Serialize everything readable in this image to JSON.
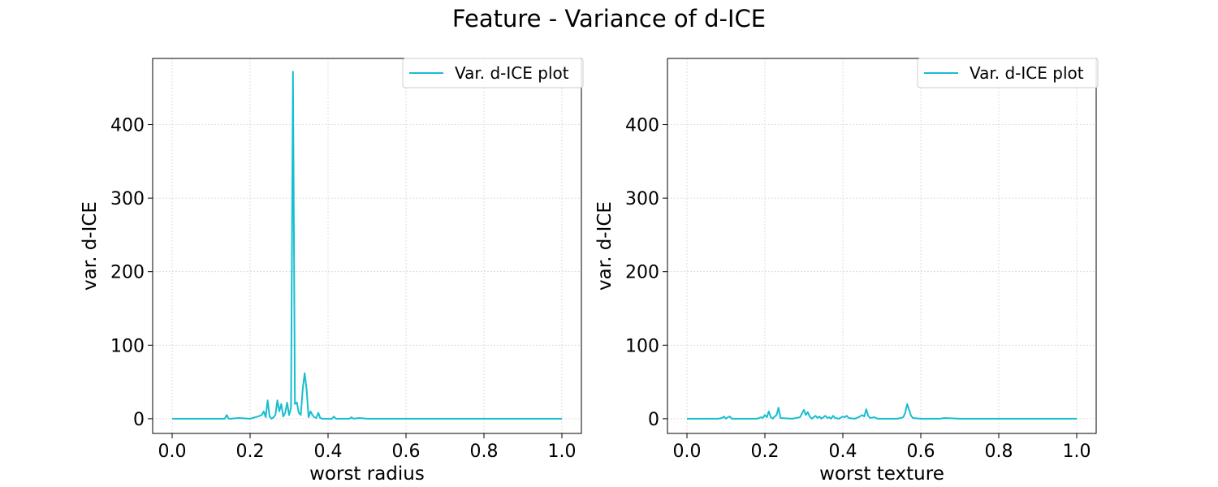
{
  "figure": {
    "title": "Feature - Variance of d-ICE"
  },
  "chart_data": [
    {
      "type": "line",
      "title": "",
      "xlabel": "worst radius",
      "ylabel": "var. d-ICE",
      "xlim": [
        -0.05,
        1.05
      ],
      "ylim": [
        -20,
        490
      ],
      "xticks": [
        "0.0",
        "0.2",
        "0.4",
        "0.6",
        "0.8",
        "1.0"
      ],
      "yticks": [
        "0",
        "100",
        "200",
        "300",
        "400"
      ],
      "grid": true,
      "legend_position": "top-right",
      "series": [
        {
          "name": "Var. d-ICE plot",
          "color": "#17becf",
          "x": [
            0.0,
            0.1,
            0.135,
            0.14,
            0.145,
            0.15,
            0.17,
            0.2,
            0.22,
            0.23,
            0.235,
            0.24,
            0.245,
            0.25,
            0.255,
            0.26,
            0.265,
            0.27,
            0.275,
            0.28,
            0.285,
            0.29,
            0.295,
            0.3,
            0.305,
            0.31,
            0.315,
            0.32,
            0.325,
            0.33,
            0.335,
            0.34,
            0.345,
            0.35,
            0.355,
            0.36,
            0.365,
            0.37,
            0.375,
            0.38,
            0.385,
            0.39,
            0.41,
            0.415,
            0.42,
            0.455,
            0.46,
            0.465,
            0.48,
            0.5,
            0.6,
            0.8,
            1.0
          ],
          "y": [
            0,
            0,
            0,
            5,
            0,
            0,
            1,
            0,
            3,
            5,
            10,
            2,
            25,
            3,
            0,
            2,
            5,
            25,
            10,
            20,
            3,
            8,
            22,
            5,
            15,
            472,
            20,
            22,
            8,
            5,
            40,
            62,
            40,
            2,
            10,
            5,
            2,
            1,
            8,
            1,
            0,
            0,
            0,
            3,
            0,
            0,
            2,
            0,
            1,
            0,
            0,
            0,
            0
          ]
        }
      ]
    },
    {
      "type": "line",
      "title": "",
      "xlabel": "worst texture",
      "ylabel": "var. d-ICE",
      "xlim": [
        -0.05,
        1.05
      ],
      "ylim": [
        -20,
        490
      ],
      "xticks": [
        "0.0",
        "0.2",
        "0.4",
        "0.6",
        "0.8",
        "1.0"
      ],
      "yticks": [
        "0",
        "100",
        "200",
        "300",
        "400"
      ],
      "grid": true,
      "legend_position": "top-right",
      "series": [
        {
          "name": "Var. d-ICE plot",
          "color": "#17becf",
          "x": [
            0.0,
            0.08,
            0.09,
            0.095,
            0.1,
            0.105,
            0.11,
            0.115,
            0.12,
            0.18,
            0.19,
            0.195,
            0.2,
            0.205,
            0.21,
            0.215,
            0.22,
            0.225,
            0.23,
            0.235,
            0.24,
            0.27,
            0.29,
            0.3,
            0.305,
            0.31,
            0.315,
            0.32,
            0.325,
            0.33,
            0.335,
            0.34,
            0.345,
            0.35,
            0.355,
            0.36,
            0.365,
            0.37,
            0.375,
            0.38,
            0.39,
            0.4,
            0.405,
            0.41,
            0.415,
            0.43,
            0.44,
            0.45,
            0.455,
            0.46,
            0.465,
            0.47,
            0.48,
            0.49,
            0.54,
            0.555,
            0.56,
            0.565,
            0.57,
            0.575,
            0.58,
            0.6,
            0.65,
            0.66,
            0.7,
            0.8,
            1.0
          ],
          "y": [
            0,
            0,
            1,
            3,
            0,
            2,
            3,
            0,
            0,
            0,
            2,
            1,
            5,
            2,
            10,
            2,
            0,
            3,
            5,
            15,
            1,
            0,
            2,
            12,
            5,
            9,
            3,
            0,
            2,
            4,
            1,
            3,
            0,
            2,
            4,
            1,
            2,
            0,
            4,
            1,
            0,
            3,
            2,
            4,
            1,
            0,
            2,
            5,
            3,
            13,
            4,
            1,
            2,
            0,
            0,
            2,
            8,
            20,
            12,
            4,
            1,
            0,
            0,
            1,
            0,
            0,
            0
          ]
        }
      ]
    }
  ]
}
